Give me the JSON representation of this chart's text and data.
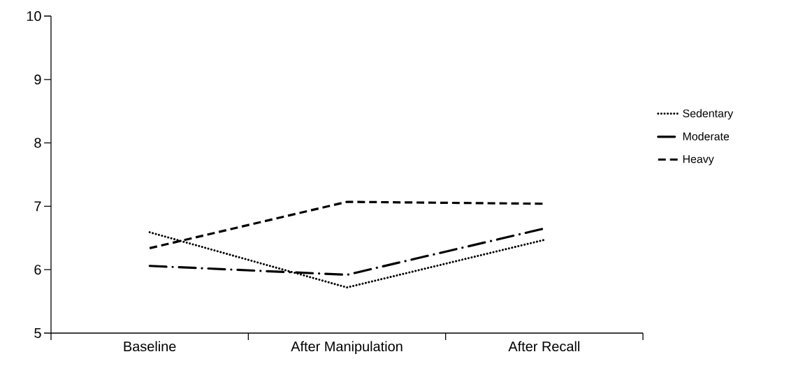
{
  "chart_data": {
    "type": "line",
    "categories": [
      "Baseline",
      "After Manipulation",
      "After Recall"
    ],
    "series": [
      {
        "name": "Sedentary",
        "color": "#000000",
        "line_style": "dotted",
        "values": [
          6.59,
          5.72,
          6.47
        ]
      },
      {
        "name": "Moderate",
        "color": "#000000",
        "line_style": "dashdot",
        "values": [
          6.06,
          5.92,
          6.65
        ]
      },
      {
        "name": "Heavy",
        "color": "#000000",
        "line_style": "dashed",
        "values": [
          6.34,
          7.07,
          7.04
        ]
      }
    ],
    "ylim": [
      5,
      10
    ],
    "yticks": [
      5,
      6,
      7,
      8,
      9,
      10
    ],
    "grid": false,
    "legend": "right",
    "marker": "none"
  }
}
